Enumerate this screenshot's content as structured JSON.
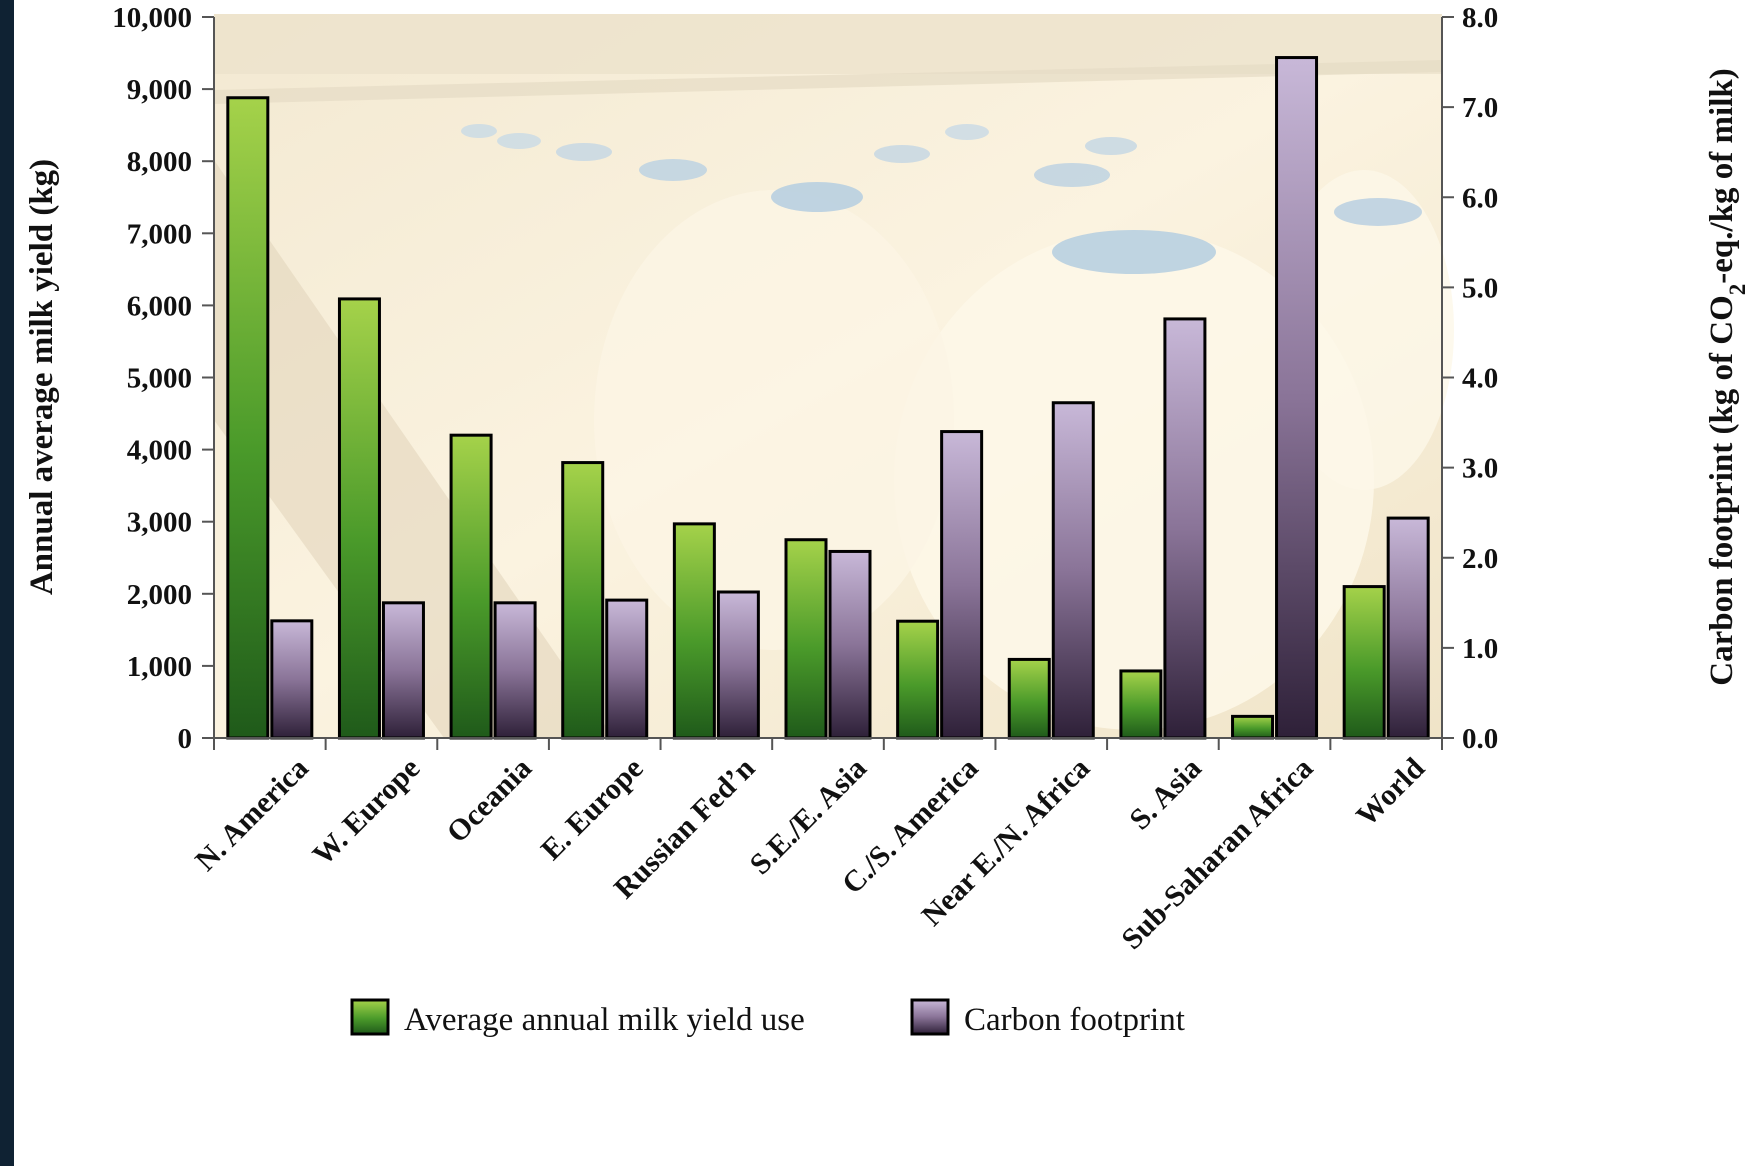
{
  "chart_data": {
    "type": "bar",
    "categories": [
      "N. America",
      "W. Europe",
      "Oceania",
      "E. Europe",
      "Russian Fed’n",
      "S.E./E. Asia",
      "C./S. America",
      "Near E./N. Africa",
      "S. Asia",
      "Sub-Saharan Africa",
      "World"
    ],
    "series": [
      {
        "name": "Average annual milk yield use",
        "axis": "left",
        "color": "#4a9a2a",
        "values": [
          8880,
          6090,
          4200,
          3820,
          2970,
          2750,
          1620,
          1090,
          930,
          300,
          2100
        ]
      },
      {
        "name": "Carbon footprint",
        "axis": "right",
        "color": "#8a7498",
        "values": [
          1.3,
          1.5,
          1.5,
          1.53,
          1.62,
          2.07,
          3.4,
          3.72,
          4.65,
          7.55,
          2.44
        ]
      }
    ],
    "y_left": {
      "label": "Annual average milk yield (kg)",
      "lim": [
        0,
        10000
      ],
      "ticks": [
        "0",
        "1,000",
        "2,000",
        "3,000",
        "4,000",
        "5,000",
        "6,000",
        "7,000",
        "8,000",
        "9,000",
        "10,000"
      ]
    },
    "y_right": {
      "label_pre": "Carbon footprint (kg of CO",
      "label_sub": "2",
      "label_post": "-eq./kg of milk)",
      "lim": [
        0,
        8.0
      ],
      "ticks": [
        "0.0",
        "1.0",
        "2.0",
        "3.0",
        "4.0",
        "5.0",
        "6.0",
        "7.0",
        "8.0"
      ]
    },
    "title": "",
    "xlabel": "",
    "grid": false,
    "legend_position": "bottom"
  }
}
